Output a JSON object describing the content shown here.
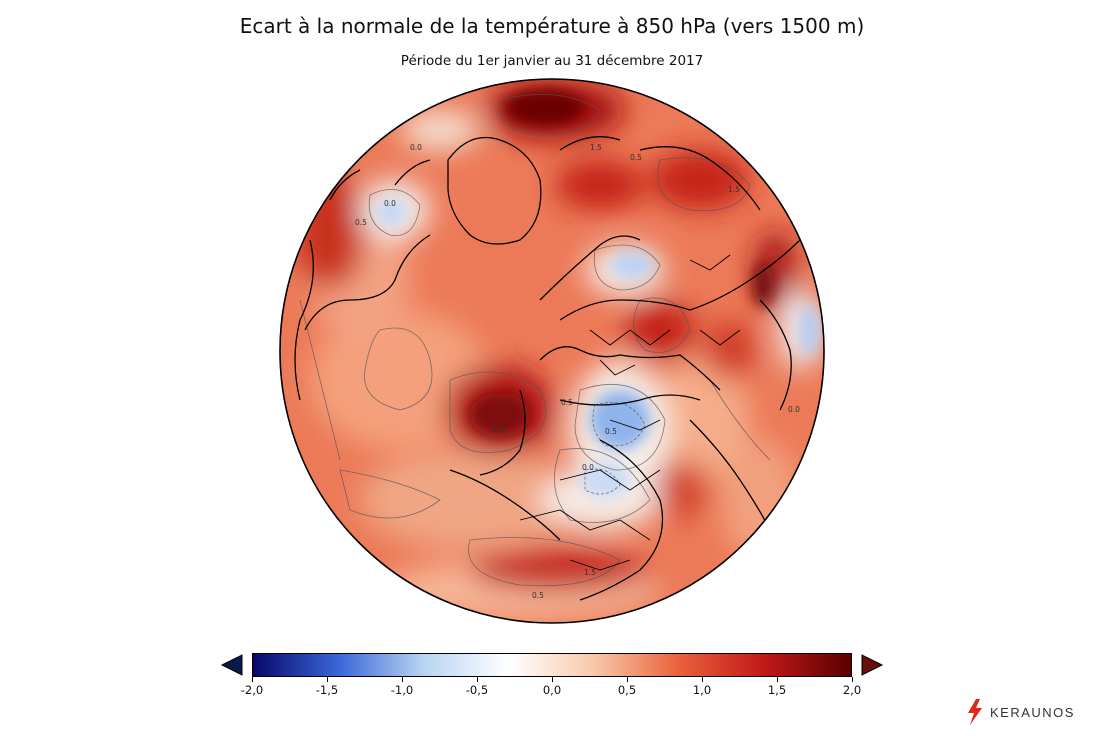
{
  "header": {
    "title": "Ecart à la normale de la température à 850 hPa (vers 1500 m)",
    "subtitle": "Période du 1er janvier au 31 décembre 2017"
  },
  "colorbar": {
    "ticks": [
      "-2,0",
      "-1,5",
      "-1,0",
      "-0,5",
      "0,0",
      "0,5",
      "1,0",
      "1,5",
      "2,0"
    ],
    "min": -2.0,
    "max": 2.0,
    "colors": {
      "neg_max": "#08086b",
      "neg_mid": "#3a66d8",
      "neg_low": "#b9d4f2",
      "zero": "#ffffff",
      "pos_low": "#f8c8a8",
      "pos_mid": "#e8603a",
      "pos_high": "#c01818",
      "pos_max": "#5a0000"
    }
  },
  "map": {
    "contour_labels": [
      "1.5",
      "1.5",
      "1.5",
      "0.5",
      "0.5",
      "0.5",
      "0.5",
      "0.0",
      "0.0",
      "0.0",
      "0.0",
      "0.5",
      "1.5"
    ]
  },
  "logo": {
    "text": "KERAUNOS",
    "icon": "lightning-bolt-icon"
  }
}
